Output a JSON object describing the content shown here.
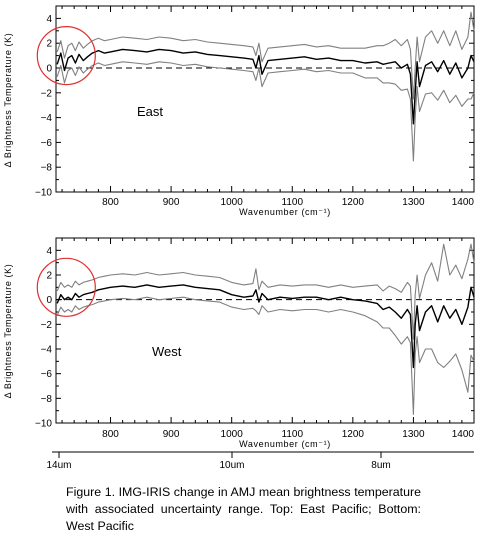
{
  "chart_data": [
    {
      "type": "line",
      "panel_label": "East",
      "xlabel": "Wavenumber (cm⁻¹)",
      "ylabel": "Δ Brightness Temperature (K)",
      "xlim": [
        710,
        1400
      ],
      "ylim": [
        -10,
        5
      ],
      "xticks": [
        "800",
        "900",
        "1000",
        "1100",
        "1200",
        "1300",
        "1400"
      ],
      "yticks": [
        "4",
        "2",
        "0",
        "−2",
        "−4",
        "−6",
        "−8",
        "−10"
      ],
      "zero_line": "dashed",
      "highlight_circle": {
        "x": 727,
        "y": 1.0,
        "color": "#e03030"
      },
      "x": [
        712,
        718,
        724,
        730,
        736,
        742,
        748,
        755,
        762,
        770,
        780,
        790,
        800,
        820,
        840,
        860,
        880,
        900,
        920,
        940,
        960,
        980,
        1000,
        1020,
        1035,
        1040,
        1045,
        1050,
        1060,
        1080,
        1100,
        1120,
        1140,
        1160,
        1180,
        1200,
        1220,
        1240,
        1250,
        1260,
        1270,
        1280,
        1290,
        1295,
        1300,
        1303,
        1306,
        1310,
        1320,
        1330,
        1340,
        1350,
        1360,
        1370,
        1380,
        1390,
        1395,
        1400
      ],
      "series": [
        {
          "role": "mean",
          "color": "#000000",
          "values": [
            0.3,
            1.2,
            -0.2,
            0.8,
            1.0,
            0.4,
            1.1,
            0.6,
            0.9,
            1.2,
            1.4,
            1.2,
            1.3,
            1.5,
            1.4,
            1.3,
            1.5,
            1.4,
            1.2,
            1.3,
            1.1,
            1.0,
            0.9,
            0.8,
            0.7,
            0.0,
            1.0,
            -0.5,
            0.6,
            0.7,
            0.8,
            0.9,
            0.7,
            0.8,
            0.6,
            0.6,
            0.4,
            0.5,
            0.3,
            0.4,
            0.5,
            0.0,
            0.3,
            -0.5,
            -4.5,
            -2.0,
            0.5,
            -1.5,
            0.2,
            0.5,
            -0.3,
            0.6,
            -0.5,
            0.4,
            -0.8,
            0.0,
            1.0,
            0.5
          ]
        },
        {
          "role": "upper",
          "color": "#808080",
          "values": [
            1.3,
            2.2,
            0.8,
            1.8,
            2.0,
            1.4,
            2.1,
            1.6,
            1.9,
            2.2,
            2.4,
            2.2,
            2.3,
            2.5,
            2.4,
            2.3,
            2.5,
            2.4,
            2.2,
            2.3,
            2.1,
            2.0,
            1.9,
            1.8,
            1.7,
            1.0,
            2.0,
            0.5,
            1.6,
            1.7,
            1.8,
            1.9,
            1.7,
            1.8,
            1.6,
            1.6,
            1.6,
            1.8,
            1.8,
            2.0,
            2.3,
            1.8,
            2.3,
            1.5,
            -2.5,
            0.0,
            2.5,
            0.5,
            2.5,
            3.0,
            2.0,
            3.0,
            1.8,
            3.0,
            1.5,
            2.5,
            4.5,
            3.0
          ]
        },
        {
          "role": "lower",
          "color": "#808080",
          "values": [
            -0.7,
            0.2,
            -1.2,
            -0.2,
            0.0,
            -0.6,
            0.1,
            -0.4,
            -0.1,
            0.2,
            0.4,
            0.2,
            0.3,
            0.5,
            0.4,
            0.3,
            0.5,
            0.4,
            0.2,
            0.3,
            0.1,
            0.0,
            -0.1,
            -0.2,
            -0.3,
            -1.0,
            0.0,
            -1.5,
            -0.4,
            -0.3,
            -0.2,
            -0.1,
            -0.3,
            -0.2,
            -0.4,
            -0.4,
            -0.8,
            -0.8,
            -1.2,
            -1.2,
            -1.3,
            -1.8,
            -1.7,
            -2.5,
            -7.5,
            -4.0,
            -1.5,
            -3.5,
            -2.1,
            -2.0,
            -2.6,
            -1.8,
            -2.8,
            -2.2,
            -3.1,
            -2.5,
            -2.5,
            -2.0
          ]
        }
      ]
    },
    {
      "type": "line",
      "panel_label": "West",
      "xlabel": "Wavenumber (cm⁻¹)",
      "ylabel": "Δ Brightness Temperature (K)",
      "xlim": [
        710,
        1400
      ],
      "ylim": [
        -10,
        5
      ],
      "xticks": [
        "800",
        "900",
        "1000",
        "1100",
        "1200",
        "1300",
        "1400"
      ],
      "yticks": [
        "4",
        "2",
        "0",
        "−2",
        "−4",
        "−6",
        "−8",
        "−10"
      ],
      "zero_line": "dashed",
      "highlight_circle": {
        "x": 727,
        "y": 1.0,
        "color": "#e03030"
      },
      "x": [
        712,
        718,
        724,
        730,
        736,
        742,
        748,
        755,
        762,
        770,
        780,
        790,
        800,
        820,
        840,
        860,
        880,
        900,
        920,
        940,
        960,
        980,
        1000,
        1020,
        1035,
        1040,
        1045,
        1050,
        1060,
        1080,
        1100,
        1120,
        1140,
        1160,
        1180,
        1200,
        1220,
        1240,
        1250,
        1260,
        1270,
        1280,
        1290,
        1295,
        1300,
        1303,
        1306,
        1310,
        1320,
        1330,
        1340,
        1350,
        1360,
        1370,
        1380,
        1390,
        1395,
        1400
      ],
      "series": [
        {
          "role": "mean",
          "color": "#000000",
          "values": [
            -0.3,
            0.4,
            0.0,
            0.2,
            0.0,
            0.5,
            0.2,
            0.4,
            0.5,
            0.6,
            0.8,
            0.9,
            1.0,
            1.1,
            1.0,
            1.2,
            1.0,
            1.1,
            1.2,
            1.0,
            0.9,
            0.8,
            0.4,
            0.2,
            0.3,
            0.8,
            -0.2,
            0.5,
            0.0,
            0.2,
            0.1,
            0.2,
            0.2,
            0.0,
            0.2,
            0.0,
            -0.1,
            -0.3,
            -0.8,
            -0.6,
            -1.0,
            -1.5,
            -0.8,
            -1.2,
            -5.5,
            -2.0,
            -0.5,
            -2.5,
            -1.0,
            -0.5,
            -1.8,
            -0.5,
            -1.5,
            -0.8,
            -2.0,
            -0.6,
            1.0,
            0.2
          ]
        },
        {
          "role": "upper",
          "color": "#808080",
          "values": [
            0.7,
            1.4,
            1.0,
            1.2,
            1.0,
            1.5,
            1.2,
            1.4,
            1.5,
            1.6,
            1.8,
            1.9,
            2.0,
            2.1,
            2.0,
            2.2,
            2.0,
            2.1,
            2.2,
            2.0,
            1.9,
            1.8,
            1.4,
            1.2,
            1.3,
            2.5,
            0.8,
            1.5,
            1.0,
            1.2,
            1.1,
            1.2,
            1.2,
            1.0,
            1.2,
            1.0,
            1.1,
            1.2,
            0.7,
            1.1,
            0.9,
            0.6,
            1.4,
            1.1,
            -3.2,
            0.4,
            2.0,
            0.1,
            2.0,
            3.0,
            1.5,
            4.5,
            2.0,
            2.8,
            1.7,
            3.3,
            4.5,
            3.0
          ]
        },
        {
          "role": "lower",
          "color": "#808080",
          "values": [
            -1.3,
            -0.6,
            -1.0,
            -0.8,
            -1.0,
            -0.5,
            -0.8,
            -0.6,
            -0.5,
            -0.4,
            -0.2,
            -0.1,
            0.0,
            0.1,
            0.0,
            0.2,
            0.0,
            0.1,
            0.2,
            0.0,
            -0.1,
            -0.2,
            -0.6,
            -0.8,
            -0.7,
            -0.9,
            -1.2,
            -0.5,
            -1.0,
            -0.8,
            -0.9,
            -0.8,
            -0.8,
            -1.0,
            -0.8,
            -1.0,
            -1.3,
            -1.8,
            -2.3,
            -2.3,
            -2.9,
            -3.6,
            -3.0,
            -3.5,
            -9.3,
            -4.4,
            -3.0,
            -5.1,
            -4.0,
            -4.0,
            -5.1,
            -5.5,
            -5.0,
            -4.4,
            -5.7,
            -7.5,
            -4.5,
            -5.0
          ]
        }
      ]
    }
  ],
  "um_axis": {
    "labels": [
      "14um",
      "10um",
      "8um"
    ]
  },
  "caption": "Figure 1. IMG-IRIS change in AMJ mean brightness temperature with associated uncertainty range. Top: East Pacific; Bottom: West Pacific"
}
